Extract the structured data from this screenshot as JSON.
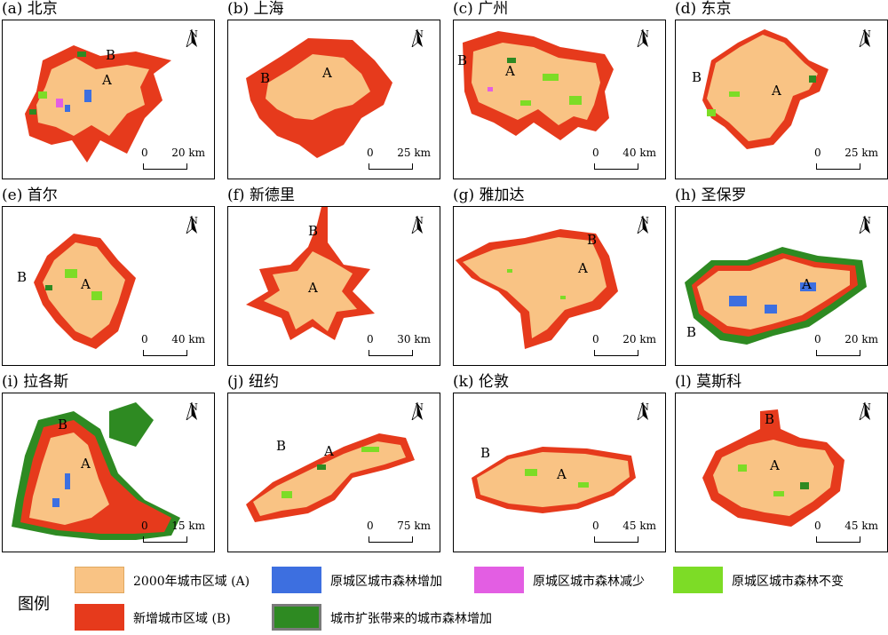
{
  "panels": [
    {
      "title": "(a) 北京",
      "label_a": "A",
      "label_b": "B",
      "scale_zero": "0",
      "scale_dist": "20 km",
      "north": "N"
    },
    {
      "title": "(b) 上海",
      "label_a": "A",
      "label_b": "B",
      "scale_zero": "0",
      "scale_dist": "25 km",
      "north": "N"
    },
    {
      "title": "(c) 广州",
      "label_a": "A",
      "label_b": "B",
      "scale_zero": "0",
      "scale_dist": "40 km",
      "north": "N"
    },
    {
      "title": "(d) 东京",
      "label_a": "A",
      "label_b": "B",
      "scale_zero": "0",
      "scale_dist": "25 km",
      "north": "N"
    },
    {
      "title": "(e) 首尔",
      "label_a": "A",
      "label_b": "B",
      "scale_zero": "0",
      "scale_dist": "40 km",
      "north": "N"
    },
    {
      "title": "(f) 新德里",
      "label_a": "A",
      "label_b": "B",
      "scale_zero": "0",
      "scale_dist": "30 km",
      "north": "N"
    },
    {
      "title": "(g) 雅加达",
      "label_a": "A",
      "label_b": "B",
      "scale_zero": "0",
      "scale_dist": "20 km",
      "north": "N"
    },
    {
      "title": "(h) 圣保罗",
      "label_a": "A",
      "label_b": "B",
      "scale_zero": "0",
      "scale_dist": "20 km",
      "north": "N"
    },
    {
      "title": "(i) 拉各斯",
      "label_a": "A",
      "label_b": "B",
      "scale_zero": "0",
      "scale_dist": "15 km",
      "north": "N"
    },
    {
      "title": "(j) 纽约",
      "label_a": "A",
      "label_b": "B",
      "scale_zero": "0",
      "scale_dist": "75 km",
      "north": "N"
    },
    {
      "title": "(k) 伦敦",
      "label_a": "A",
      "label_b": "B",
      "scale_zero": "0",
      "scale_dist": "45 km",
      "north": "N"
    },
    {
      "title": "(l) 莫斯科",
      "label_a": "A",
      "label_b": "B",
      "scale_zero": "0",
      "scale_dist": "45 km",
      "north": "N"
    }
  ],
  "legend": {
    "title": "图例",
    "items": [
      {
        "label": "2000年城市区域 (A)",
        "color": "#f9c384"
      },
      {
        "label": "原城区城市森林增加",
        "color": "#3d6fe0"
      },
      {
        "label": "原城区城市森林减少",
        "color": "#e35ee3"
      },
      {
        "label": "原城区城市森林不变",
        "color": "#7ddc26"
      },
      {
        "label": "新增城市区域 (B)",
        "color": "#e63a1c"
      },
      {
        "label": "城市扩张带来的城市森林增加",
        "color": "#2e8a22"
      }
    ]
  },
  "colors": {
    "urban_2000": "#f9c384",
    "new_urban": "#e63a1c",
    "forest_increase": "#3d6fe0",
    "forest_decrease": "#e35ee3",
    "forest_unchanged": "#7ddc26",
    "expansion_forest": "#2e8a22"
  }
}
